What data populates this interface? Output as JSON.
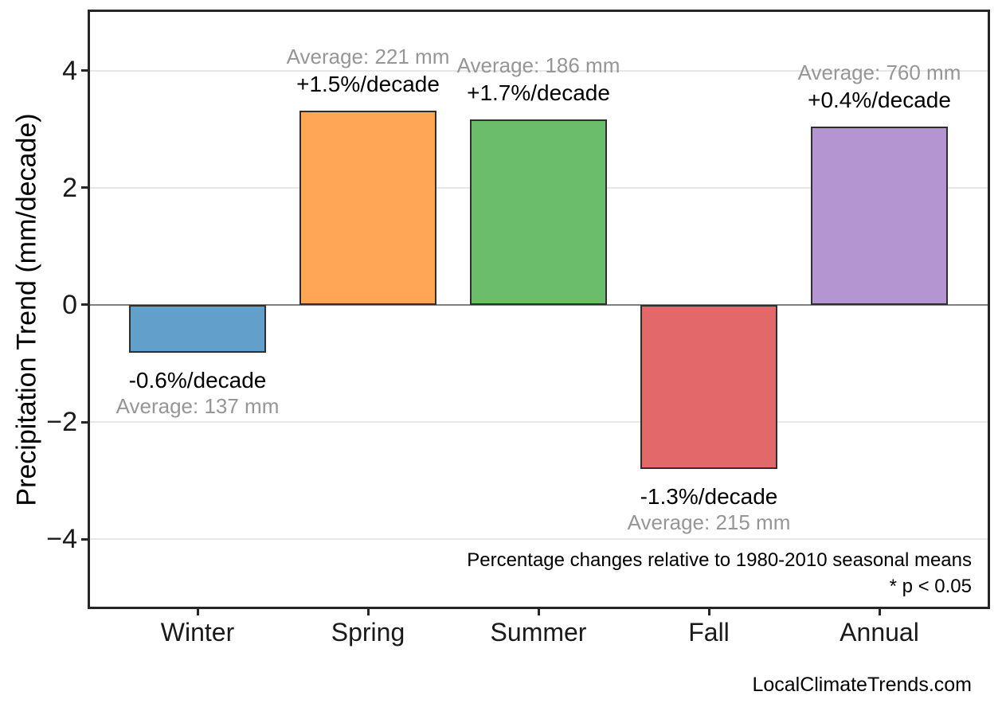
{
  "page": {
    "background": "#ffffff",
    "watermark": "LocalClimateTrends.com"
  },
  "chart_data": {
    "type": "bar",
    "title": "",
    "xlabel": "",
    "ylabel": "Precipitation Trend (mm/decade)",
    "categories": [
      "Winter",
      "Spring",
      "Summer",
      "Fall",
      "Annual"
    ],
    "values": [
      -0.82,
      3.32,
      3.16,
      -2.8,
      3.04
    ],
    "units": "mm/decade",
    "percent_change_per_decade": [
      -0.6,
      1.5,
      1.7,
      -1.3,
      0.4
    ],
    "average_mm": [
      137,
      221,
      186,
      215,
      760
    ],
    "percent_labels": [
      "-0.6%/decade",
      "+1.5%/decade",
      "+1.7%/decade",
      "-1.3%/decade",
      "+0.4%/decade"
    ],
    "average_labels": [
      "Average: 137 mm",
      "Average: 221 mm",
      "Average: 186 mm",
      "Average: 215 mm",
      "Average: 760 mm"
    ],
    "bar_colors": [
      "#62A0CB",
      "#FFA556",
      "#6BBD6B",
      "#E26869",
      "#B495D1"
    ],
    "bar_edge_color": "#2e2e2e",
    "yticks": [
      4,
      2,
      0,
      -2,
      -4
    ],
    "ytick_labels": [
      "4",
      "2",
      "0",
      "−2",
      "−4"
    ],
    "ylim": [
      -5.15,
      5.0
    ],
    "grid": true,
    "grid_color": "#e7e7e7",
    "zero_line_color": "#808080",
    "label_colors": {
      "percent": "#000000",
      "average": "#969696"
    },
    "footnotes": [
      "Percentage changes relative to 1980-2010 seasonal means",
      "* p < 0.05"
    ]
  }
}
